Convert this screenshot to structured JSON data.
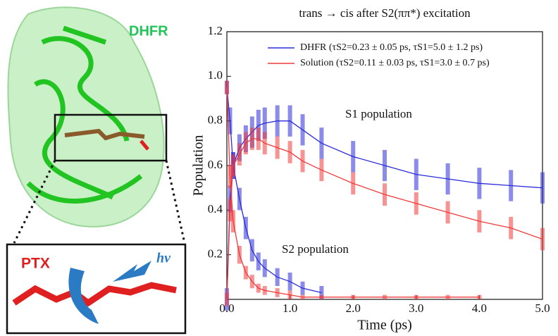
{
  "chart_data": {
    "type": "line",
    "title": "trans → cis after S2(ππ*) excitation",
    "xlabel": "Time (ps)",
    "ylabel": "Population",
    "x": [
      0,
      0.05,
      0.1,
      0.2,
      0.3,
      0.4,
      0.5,
      0.6,
      0.8,
      1.0,
      1.2,
      1.5,
      2.0,
      2.5,
      3.0,
      3.5,
      4.0,
      4.5,
      5.0
    ],
    "series": [
      {
        "name": "DHFR (τS2=0.23 ± 0.05 ps, τS1=5.0 ± 1.2 ps)",
        "color": "#2b2bd9",
        "curves": [
          {
            "values": [
              0.0,
              0.45,
              0.6,
              0.68,
              0.72,
              0.75,
              0.78,
              0.79,
              0.8,
              0.8,
              0.76,
              0.7,
              0.64,
              0.6,
              0.56,
              0.54,
              0.52,
              0.51,
              0.5
            ],
            "error": [
              0.05,
              0.06,
              0.06,
              0.06,
              0.06,
              0.07,
              0.07,
              0.07,
              0.07,
              0.07,
              0.07,
              0.07,
              0.07,
              0.07,
              0.07,
              0.07,
              0.07,
              0.07,
              0.07
            ]
          },
          {
            "values": [
              0.95,
              0.8,
              0.6,
              0.45,
              0.32,
              0.22,
              0.17,
              0.14,
              0.1,
              0.08,
              0.05,
              0.03,
              null,
              null,
              null,
              null,
              null,
              null,
              null
            ],
            "error": [
              0.03,
              0.06,
              0.06,
              0.05,
              0.05,
              0.05,
              0.04,
              0.04,
              0.04,
              0.04,
              0.03,
              0.03,
              null,
              null,
              null,
              null,
              null,
              null,
              null
            ]
          }
        ]
      },
      {
        "name": "Solution (τS2=0.11 ± 0.03 ps, τS1=3.0 ± 0.7 ps)",
        "color": "#f03a3a",
        "curves": [
          {
            "values": [
              0.0,
              0.4,
              0.6,
              0.65,
              0.7,
              0.72,
              0.72,
              0.7,
              0.68,
              0.66,
              0.62,
              0.58,
              0.52,
              0.47,
              0.43,
              0.39,
              0.35,
              0.32,
              0.27
            ],
            "error": [
              0.03,
              0.05,
              0.05,
              0.05,
              0.05,
              0.05,
              0.05,
              0.05,
              0.05,
              0.05,
              0.05,
              0.05,
              0.05,
              0.05,
              0.05,
              0.05,
              0.05,
              0.05,
              0.05
            ]
          },
          {
            "values": [
              0.95,
              0.55,
              0.35,
              0.2,
              0.12,
              0.08,
              0.05,
              0.04,
              0.03,
              0.02,
              0.01,
              0.01,
              0.01,
              0.01,
              0.01,
              0.01,
              0.01,
              null,
              null
            ],
            "error": [
              0.03,
              0.05,
              0.05,
              0.04,
              0.03,
              0.03,
              0.02,
              0.02,
              0.02,
              0.02,
              0.01,
              0.01,
              0.01,
              0.01,
              0.01,
              0.01,
              0.01,
              null,
              null
            ]
          }
        ]
      }
    ],
    "annotations": [
      "S1 population",
      "S2 population"
    ],
    "xlim": [
      0,
      5
    ],
    "ylim": [
      0,
      1.2
    ],
    "xticks": [
      {
        "value": 0,
        "label": "0.0"
      },
      {
        "value": 1,
        "label": "1.0"
      },
      {
        "value": 2,
        "label": "2.0"
      },
      {
        "value": 3,
        "label": "3.0"
      },
      {
        "value": 4,
        "label": "4.0"
      },
      {
        "value": 5,
        "label": "5.0"
      }
    ],
    "yticks": [
      0.2,
      0.4,
      0.6,
      0.8,
      {
        "value": 1,
        "label": "1.0"
      },
      1.2
    ],
    "grid": false
  },
  "illustration": {
    "protein_label": "DHFR",
    "ligand_label": "PTX",
    "photon_label": "hν"
  }
}
